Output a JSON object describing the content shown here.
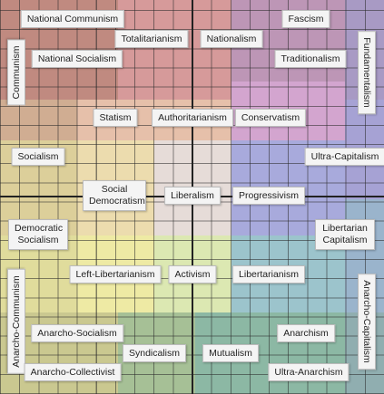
{
  "labels": [
    "National Communism",
    "Totalitarianism",
    "Nationalism",
    "Fascism",
    "Communism",
    "National Socialism",
    "Traditionalism",
    "Fundamentalism",
    "Statism",
    "Authoritarianism",
    "Conservatism",
    "Socialism",
    "Ultra-Capitalism",
    "Social Democratism",
    "Liberalism",
    "Progressivism",
    "Democratic Socialism",
    "Libertarian Capitalism",
    "Left-Libertarianism",
    "Activism",
    "Libertarianism",
    "Anarcho-Communism",
    "Anarcho-Capitalism",
    "Anarcho-Socialism",
    "Anarchism",
    "Syndicalism",
    "Mutualism",
    "Anarcho-Collectivist",
    "Ultra-Anarchism"
  ]
}
